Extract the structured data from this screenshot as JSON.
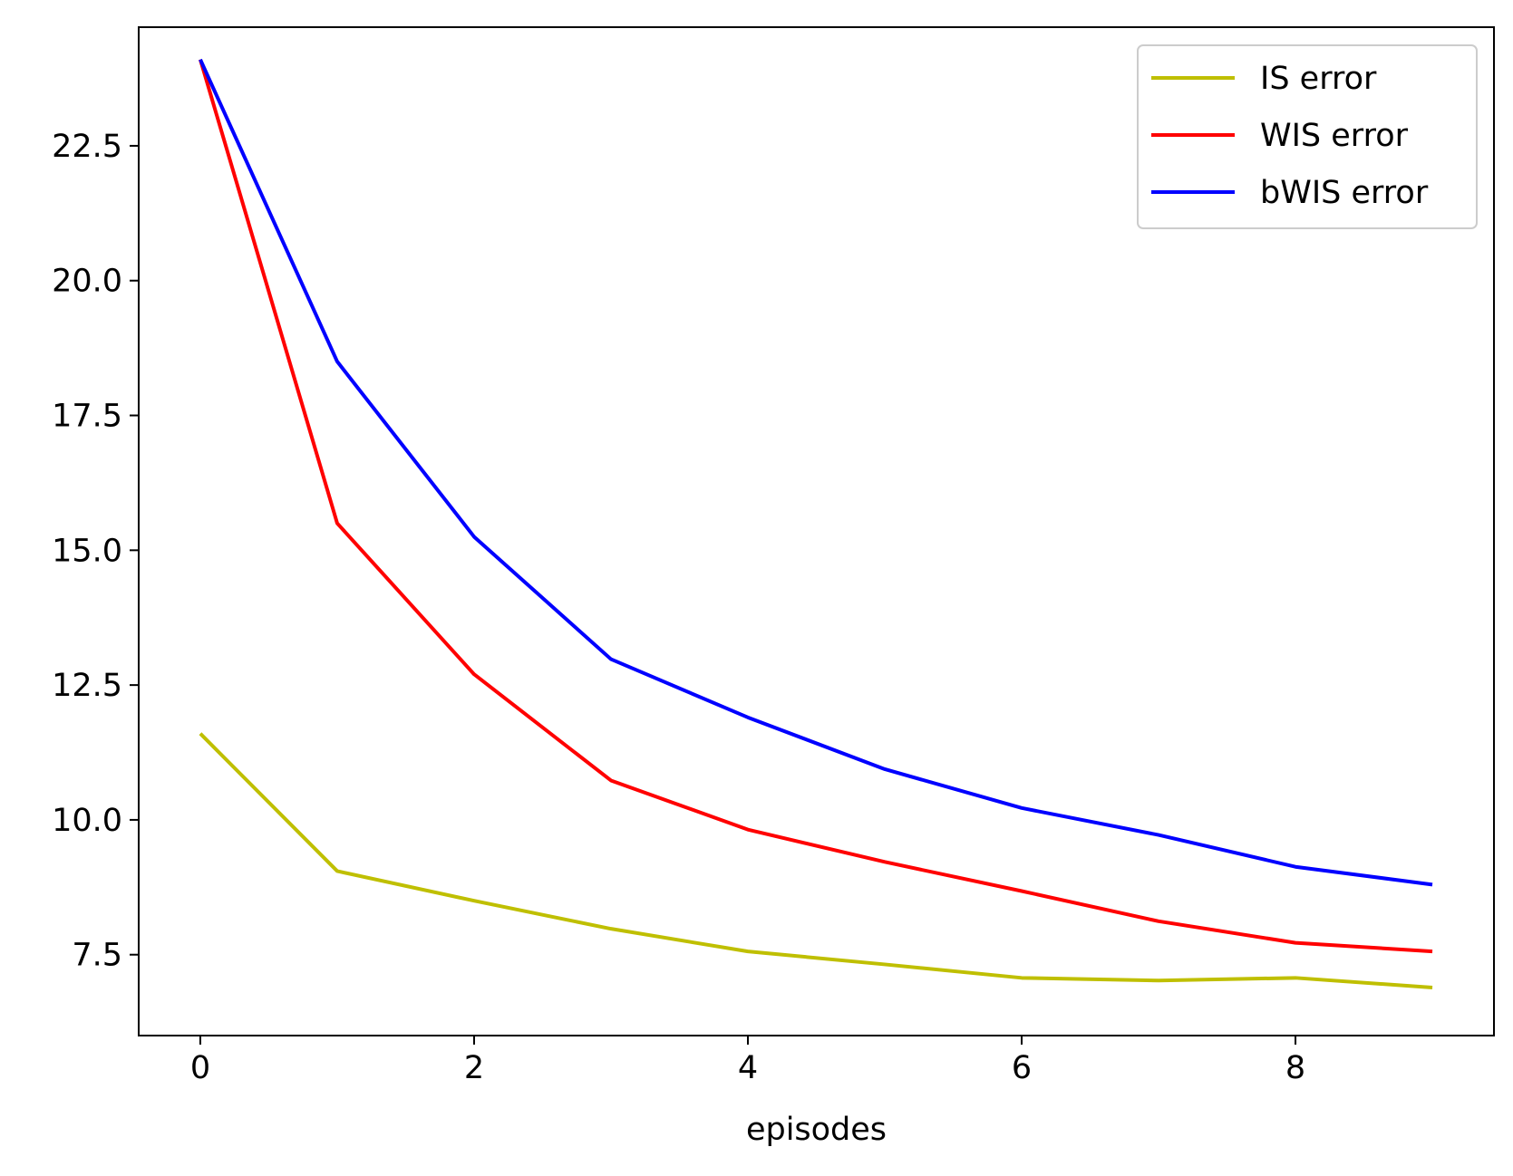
{
  "chart_data": {
    "type": "line",
    "title": "",
    "xlabel": "episodes",
    "ylabel": "",
    "x": [
      0,
      1,
      2,
      3,
      4,
      5,
      6,
      7,
      8,
      9
    ],
    "xlim": [
      -0.45,
      9.45
    ],
    "ylim": [
      6.0,
      24.7
    ],
    "xticks": [
      0,
      2,
      4,
      6,
      8
    ],
    "xtick_labels": [
      "0",
      "2",
      "4",
      "6",
      "8"
    ],
    "yticks": [
      7.5,
      10.0,
      12.5,
      15.0,
      17.5,
      20.0,
      22.5
    ],
    "ytick_labels": [
      "7.5",
      "10.0",
      "12.5",
      "15.0",
      "17.5",
      "20.0",
      "22.5"
    ],
    "grid": false,
    "legend_position": "top-right",
    "series": [
      {
        "name": "IS error",
        "color": "#bfbf00",
        "values": [
          11.6,
          9.05,
          8.5,
          7.98,
          7.56,
          7.32,
          7.07,
          7.02,
          7.07,
          6.89
        ]
      },
      {
        "name": "WIS error",
        "color": "#ff0000",
        "values": [
          24.1,
          15.5,
          12.7,
          10.73,
          9.82,
          9.22,
          8.68,
          8.12,
          7.72,
          7.56
        ]
      },
      {
        "name": "bWIS error",
        "color": "#0000ff",
        "values": [
          24.1,
          18.5,
          15.25,
          12.98,
          11.9,
          10.94,
          10.22,
          9.72,
          9.13,
          8.8
        ]
      }
    ]
  }
}
